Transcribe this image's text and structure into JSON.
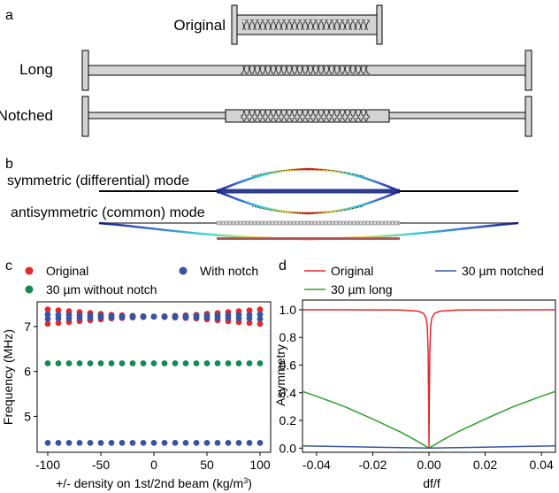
{
  "panels": {
    "a": {
      "letter": "a",
      "labels": {
        "original": "Original",
        "long": "Long",
        "notched": "Notched"
      }
    },
    "b": {
      "letter": "b",
      "modes": {
        "symmetric": "symmetric (differential) mode",
        "antisymmetric": "antisymmetric (common) mode"
      }
    },
    "c": {
      "letter": "c"
    },
    "d": {
      "letter": "d"
    }
  },
  "chart_data": [
    {
      "id": "c",
      "type": "scatter",
      "xlabel": "+/- density on 1st/2nd beam (kg/m",
      "xlabel_sup": "3",
      "xlabel_end": ")",
      "ylabel": "Frequency (MHz)",
      "xlim": [
        -110,
        110
      ],
      "ylim": [
        4.2,
        7.55
      ],
      "xticks": [
        -100,
        -50,
        0,
        50,
        100
      ],
      "yticks": [
        5,
        6,
        7
      ],
      "x": [
        -100,
        -90,
        -80,
        -70,
        -60,
        -50,
        -40,
        -30,
        -20,
        -10,
        0,
        10,
        20,
        30,
        40,
        50,
        60,
        70,
        80,
        90,
        100
      ],
      "legend": [
        {
          "label": "Original",
          "color": "#e8262b"
        },
        {
          "label": "With notch",
          "color": "#3953a4"
        },
        {
          "label": "30 µm without notch",
          "color": "#138a4f"
        }
      ],
      "series": [
        {
          "name": "Original",
          "color": "#e8262b",
          "values": [
            7.38,
            7.36,
            7.34,
            7.32,
            7.3,
            7.28,
            7.26,
            7.25,
            7.24,
            7.23,
            7.22,
            7.23,
            7.24,
            7.25,
            7.26,
            7.28,
            7.3,
            7.32,
            7.34,
            7.36,
            7.38
          ]
        },
        {
          "name": "Original",
          "color": "#e8262b",
          "values": [
            7.06,
            7.08,
            7.1,
            7.12,
            7.14,
            7.16,
            7.18,
            7.19,
            7.2,
            7.21,
            7.22,
            7.21,
            7.2,
            7.19,
            7.18,
            7.16,
            7.14,
            7.12,
            7.1,
            7.08,
            7.06
          ]
        },
        {
          "name": "With notch",
          "color": "#3953a4",
          "values": [
            7.27,
            7.26,
            7.26,
            7.25,
            7.25,
            7.24,
            7.24,
            7.23,
            7.23,
            7.22,
            7.22,
            7.22,
            7.23,
            7.23,
            7.24,
            7.24,
            7.25,
            7.25,
            7.26,
            7.26,
            7.27
          ]
        },
        {
          "name": "With notch",
          "color": "#3953a4",
          "values": [
            7.17,
            7.18,
            7.18,
            7.19,
            7.19,
            7.2,
            7.2,
            7.21,
            7.21,
            7.22,
            7.22,
            7.22,
            7.21,
            7.21,
            7.2,
            7.2,
            7.19,
            7.19,
            7.18,
            7.18,
            7.17
          ]
        },
        {
          "name": "30 µm without notch",
          "color": "#138a4f",
          "values": [
            6.18,
            6.18,
            6.18,
            6.18,
            6.18,
            6.18,
            6.18,
            6.18,
            6.18,
            6.18,
            6.18,
            6.18,
            6.18,
            6.18,
            6.18,
            6.18,
            6.18,
            6.18,
            6.18,
            6.18,
            6.18
          ]
        },
        {
          "name": "With notch",
          "color": "#3953a4",
          "values": [
            4.41,
            4.41,
            4.41,
            4.41,
            4.41,
            4.41,
            4.41,
            4.41,
            4.41,
            4.41,
            4.41,
            4.41,
            4.41,
            4.41,
            4.41,
            4.41,
            4.41,
            4.41,
            4.41,
            4.41,
            4.41
          ]
        }
      ]
    },
    {
      "id": "d",
      "type": "line",
      "xlabel": "df/f",
      "ylabel": "Asymmetry",
      "xlim": [
        -0.045,
        0.045
      ],
      "ylim": [
        -0.03,
        1.07
      ],
      "xticks": [
        "-0.04",
        "-0.02",
        "0.00",
        "0.02",
        "0.04"
      ],
      "yticks": [
        "0.0",
        "0.2",
        "0.4",
        "0.6",
        "0.8",
        "1.0"
      ],
      "legend": [
        {
          "label": "Original",
          "color": "#e8262b"
        },
        {
          "label": "30 µm notched",
          "color": "#3953a4"
        },
        {
          "label": "30 µm long",
          "color": "#2ca02c"
        }
      ],
      "series": [
        {
          "name": "Original",
          "color": "#e8262b",
          "x": [
            -0.045,
            -0.01,
            -0.004,
            -0.002,
            -0.001,
            -0.0006,
            -0.0003,
            -0.0001,
            0,
            0.0001,
            0.0003,
            0.0006,
            0.001,
            0.002,
            0.004,
            0.01,
            0.045
          ],
          "values": [
            1.0,
            0.998,
            0.99,
            0.975,
            0.94,
            0.88,
            0.7,
            0.3,
            0.0,
            0.3,
            0.7,
            0.88,
            0.94,
            0.975,
            0.99,
            0.998,
            1.0
          ]
        },
        {
          "name": "30 µm long",
          "color": "#2ca02c",
          "x": [
            -0.045,
            -0.04,
            -0.03,
            -0.02,
            -0.01,
            -0.005,
            0,
            0.005,
            0.01,
            0.02,
            0.03,
            0.04,
            0.045
          ],
          "values": [
            0.41,
            0.375,
            0.3,
            0.21,
            0.115,
            0.06,
            0.0,
            0.06,
            0.115,
            0.21,
            0.3,
            0.375,
            0.41
          ]
        },
        {
          "name": "30 µm notched",
          "color": "#3953a4",
          "x": [
            -0.045,
            -0.03,
            -0.015,
            0,
            0.015,
            0.03,
            0.045
          ],
          "values": [
            0.016,
            0.011,
            0.005,
            0.0,
            0.005,
            0.011,
            0.016
          ]
        }
      ]
    }
  ]
}
